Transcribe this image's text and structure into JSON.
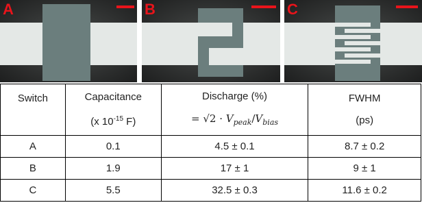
{
  "panels": [
    {
      "label": "A"
    },
    {
      "label": "B"
    },
    {
      "label": "C"
    }
  ],
  "table": {
    "header": {
      "switch": "Switch",
      "capacitance": {
        "line1": "Capacitance",
        "line2_pre": "(x 10",
        "line2_sup": "-15",
        "line2_post": " F)"
      },
      "discharge": {
        "line1": "Discharge (%)",
        "formula": [
          "= √2 · ",
          "V",
          "peak",
          "/",
          "V",
          "bias"
        ]
      },
      "fwhm": {
        "line1": "FWHM",
        "line2": "(ps)"
      }
    },
    "rows": [
      [
        "A",
        "0.1",
        "4.5 ± 0.1",
        "8.7 ± 0.2"
      ],
      [
        "B",
        "1.9",
        "17 ± 1",
        "9 ± 1"
      ],
      [
        "C",
        "5.5",
        "32.5 ± 0.3",
        "11.6 ± 0.2"
      ]
    ]
  }
}
